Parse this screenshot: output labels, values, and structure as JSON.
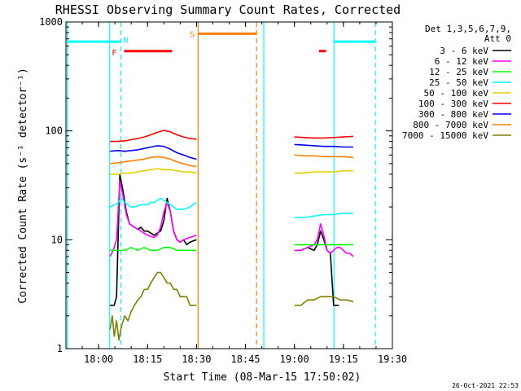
{
  "chart_data": {
    "type": "line",
    "title": "RHESSI Observing Summary Count Rates, Corrected",
    "xlabel": "Start Time (08-Mar-15 17:50:02)",
    "ylabel": "Corrected Count Rate (s⁻¹ detector⁻¹)",
    "timestamp": "26-Oct-2021 22:53",
    "x_unit": "minutes after 17:50:02",
    "xlim": [
      0,
      100
    ],
    "ylim": [
      1,
      1000
    ],
    "yscale": "log",
    "xticks": [
      {
        "label": "18:00",
        "t": 10
      },
      {
        "label": "18:15",
        "t": 25
      },
      {
        "label": "18:30",
        "t": 40
      },
      {
        "label": "18:45",
        "t": 55
      },
      {
        "label": "19:00",
        "t": 70
      },
      {
        "label": "19:15",
        "t": 85
      },
      {
        "label": "19:30",
        "t": 100
      }
    ],
    "yticks": [
      {
        "label": "1",
        "v": 1
      },
      {
        "label": "10",
        "v": 10
      },
      {
        "label": "100",
        "v": 100
      },
      {
        "label": "1000",
        "v": 1000
      }
    ],
    "legend_header": [
      "Det 1,3,5,6,7,9,",
      "Att 0"
    ],
    "legend_placement": "right",
    "series": [
      {
        "name": "3 - 6 keV",
        "color": "#000000",
        "segments": [
          {
            "t": [
              13.5,
              14.8,
              15.5,
              16.5,
              17.5,
              18.5,
              19.5,
              21,
              22,
              23,
              24,
              25,
              26,
              27,
              28,
              29,
              30,
              31,
              32,
              33,
              34,
              35,
              36,
              37,
              38,
              40
            ],
            "v": [
              2.5,
              2.5,
              3,
              40,
              28,
              18,
              14,
              13,
              12.5,
              13,
              12,
              12,
              11.5,
              11,
              11.5,
              12,
              15,
              24,
              18,
              12,
              10,
              9.5,
              10,
              9,
              9.5,
              10
            ]
          },
          {
            "t": [
              70,
              72,
              74,
              76,
              77,
              78,
              79,
              80,
              81,
              82,
              83.6
            ],
            "v": [
              8,
              8,
              8.5,
              8,
              9,
              12,
              10,
              8,
              7.5,
              2.5,
              2.5
            ]
          }
        ]
      },
      {
        "name": "6 - 12 keV",
        "color": "#ff00ff",
        "segments": [
          {
            "t": [
              13.5,
              14.5,
              15.5,
              16.5,
              17.5,
              18.5,
              19.5,
              21,
              23,
              25,
              27,
              28,
              29,
              30,
              31,
              32,
              33,
              34,
              35,
              36,
              38,
              40
            ],
            "v": [
              7,
              8,
              10,
              35,
              25,
              17,
              14,
              13,
              12,
              11,
              10.5,
              11,
              13,
              18,
              22,
              18,
              12,
              10,
              9.5,
              10,
              10.5,
              11
            ]
          },
          {
            "t": [
              70,
              72,
              74,
              76,
              77,
              78,
              79,
              80,
              81,
              82,
              83,
              84,
              85,
              86,
              87,
              88
            ],
            "v": [
              8,
              8,
              8.5,
              9,
              10,
              14,
              11,
              8,
              7.5,
              8,
              8.5,
              8.5,
              8,
              7.5,
              7.5,
              7
            ]
          }
        ]
      },
      {
        "name": "12 - 25 keV",
        "color": "#00ff00",
        "segments": [
          {
            "t": [
              13.5,
              16,
              18,
              20,
              22,
              24,
              26,
              28,
              30,
              32,
              34,
              36,
              38,
              40
            ],
            "v": [
              8,
              8,
              8,
              8.5,
              8,
              8.5,
              8,
              8,
              8.5,
              8.5,
              8,
              8,
              8,
              8
            ]
          },
          {
            "t": [
              70,
              72,
              74,
              76,
              78,
              80,
              82,
              84,
              86,
              88
            ],
            "v": [
              9,
              9,
              9,
              9,
              9,
              9,
              9,
              9,
              9,
              9
            ]
          }
        ]
      },
      {
        "name": "25 - 50 keV",
        "color": "#00ffff",
        "segments": [
          {
            "t": [
              13.5,
              15,
              16,
              17,
              18,
              19,
              20,
              21,
              22,
              23,
              24,
              25,
              26,
              27,
              28,
              29,
              30,
              31,
              32,
              33,
              34,
              35,
              36,
              37,
              38,
              39,
              40
            ],
            "v": [
              20,
              21,
              22,
              24,
              22,
              21,
              20,
              20,
              20.5,
              21,
              21,
              21,
              22,
              22,
              23,
              24,
              23,
              22,
              21,
              20,
              19,
              19,
              19,
              19.5,
              20,
              21,
              22
            ]
          },
          {
            "t": [
              70,
              73,
              76,
              79,
              82,
              85,
              88
            ],
            "v": [
              16,
              16,
              16.5,
              17,
              17,
              17.5,
              17.5
            ]
          }
        ]
      },
      {
        "name": "50 - 100 keV",
        "color": "#e0d000",
        "segments": [
          {
            "t": [
              13.5,
              16,
              18,
              20,
              22,
              24,
              26,
              28,
              30,
              32,
              34,
              36,
              38,
              40
            ],
            "v": [
              40,
              40,
              41,
              41,
              42,
              43,
              44,
              45,
              44,
              44,
              43,
              42,
              42,
              41
            ]
          },
          {
            "t": [
              70,
              73,
              76,
              79,
              82,
              85,
              88
            ],
            "v": [
              41,
              41,
              42,
              42,
              42,
              43,
              43
            ]
          }
        ]
      },
      {
        "name": "100 - 300 keV",
        "color": "#ff0000",
        "segments": [
          {
            "t": [
              13.5,
              16,
              18,
              20,
              22,
              24,
              26,
              28,
              30,
              32,
              34,
              36,
              38,
              40
            ],
            "v": [
              80,
              80,
              81,
              83,
              85,
              88,
              92,
              97,
              101,
              98,
              92,
              88,
              85,
              84
            ]
          },
          {
            "t": [
              70,
              73,
              76,
              79,
              82,
              85,
              88
            ],
            "v": [
              88,
              87,
              86,
              86,
              87,
              88,
              89
            ]
          }
        ]
      },
      {
        "name": "300 - 800 keV",
        "color": "#0000ff",
        "segments": [
          {
            "t": [
              13.5,
              16,
              18,
              20,
              22,
              24,
              26,
              28,
              30,
              32,
              34,
              36,
              38,
              40
            ],
            "v": [
              65,
              66,
              65,
              66,
              67,
              69,
              71,
              73,
              72,
              68,
              63,
              60,
              57,
              55
            ]
          },
          {
            "t": [
              70,
              73,
              76,
              79,
              82,
              85,
              88
            ],
            "v": [
              75,
              74,
              73,
              72,
              72,
              71,
              71
            ]
          }
        ]
      },
      {
        "name": "800 - 7000 keV",
        "color": "#ff8000",
        "segments": [
          {
            "t": [
              13.5,
              16,
              18,
              20,
              22,
              24,
              26,
              28,
              30,
              32,
              34,
              36,
              38,
              40
            ],
            "v": [
              50,
              51,
              52,
              53,
              54,
              55,
              57,
              58,
              57,
              55,
              52,
              50,
              48,
              47
            ]
          },
          {
            "t": [
              70,
              73,
              76,
              79,
              82,
              85,
              88
            ],
            "v": [
              60,
              59,
              59,
              58,
              58,
              58,
              57
            ]
          }
        ]
      },
      {
        "name": "7000 - 15000 keV",
        "color": "#808000",
        "segments": [
          {
            "t": [
              13.5,
              14.2,
              14.8,
              15.5,
              16.2,
              17,
              18,
              19,
              20,
              21,
              22,
              23,
              24,
              25,
              26,
              27,
              28,
              29,
              30,
              31,
              32,
              33,
              34,
              35,
              36,
              37,
              38,
              39,
              40
            ],
            "v": [
              1.5,
              2,
              1.3,
              1.8,
              1.2,
              1.6,
              2,
              1.8,
              2.2,
              2.5,
              2.8,
              3,
              3.5,
              3.5,
              4,
              4.5,
              5,
              5,
              4.5,
              4,
              4,
              3.5,
              3.5,
              3,
              3,
              3,
              2.5,
              2.5,
              2.5
            ]
          },
          {
            "t": [
              70,
              72,
              74,
              76,
              78,
              80,
              82,
              84,
              86,
              88
            ],
            "v": [
              2.5,
              2.5,
              2.8,
              2.8,
              3,
              3,
              3,
              2.8,
              2.8,
              2.7
            ]
          }
        ]
      }
    ],
    "vlines": [
      {
        "t": 0.4,
        "color": "#00ffff",
        "dash": false
      },
      {
        "t": 13.3,
        "color": "#00ffff",
        "dash": false
      },
      {
        "t": 16.8,
        "color": "#00ffff",
        "dash": true
      },
      {
        "t": 40.5,
        "color": "#ff8000",
        "dash": false
      },
      {
        "t": 58.4,
        "color": "#ff8000",
        "dash": true
      },
      {
        "t": 60.6,
        "color": "#00ffff",
        "dash": false
      },
      {
        "t": 82.1,
        "color": "#00ffff",
        "dash": false
      },
      {
        "t": 94.8,
        "color": "#00ffff",
        "dash": true
      }
    ],
    "flag_bars": [
      {
        "t0": 0.4,
        "t1": 16.8,
        "level": 660,
        "color": "#00ffff"
      },
      {
        "t0": 82.1,
        "t1": 94.8,
        "level": 660,
        "color": "#00ffff"
      },
      {
        "t0": 17.8,
        "t1": 32.5,
        "level": 540,
        "color": "#ff0000"
      },
      {
        "t0": 77.5,
        "t1": 79.7,
        "level": 540,
        "color": "#ff0000"
      },
      {
        "t0": 40.5,
        "t1": 58.4,
        "level": 780,
        "color": "#ff8000"
      }
    ],
    "flag_labels": [
      {
        "text": "N",
        "t": 18.3,
        "level": 690,
        "color": "#00ffff"
      },
      {
        "text": "F",
        "t": 14.8,
        "level": 530,
        "color": "#ff0000"
      },
      {
        "text": "S",
        "t": 38.7,
        "level": 780,
        "color": "#ff8000"
      }
    ]
  }
}
